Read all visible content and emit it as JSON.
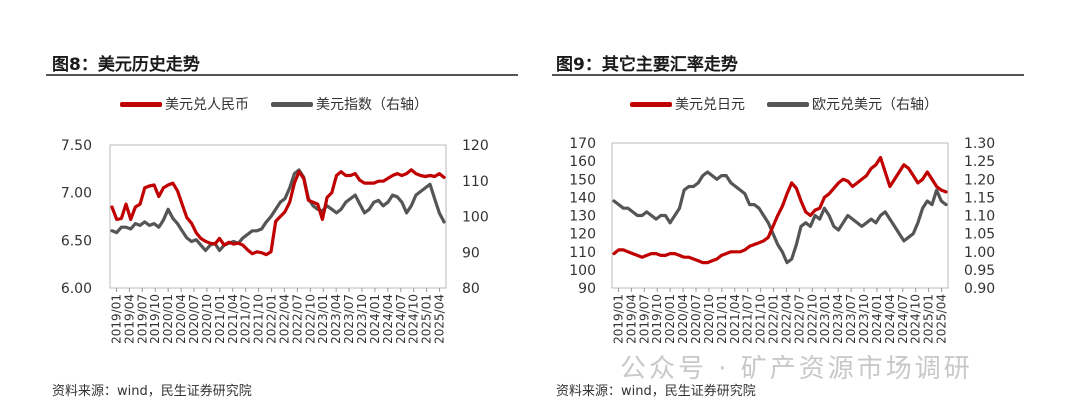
{
  "figures": [
    {
      "title": "图8：美元历史走势",
      "source": "资料来源：wind，民生证券研究院",
      "legend": [
        {
          "label": "美元兑人民币",
          "color": "#c00000"
        },
        {
          "label": "美元指数（右轴）",
          "color": "#555555"
        }
      ]
    },
    {
      "title": "图9：其它主要汇率走势",
      "source": "资料来源：wind，民生证券研究院",
      "legend": [
        {
          "label": "美元兑日元",
          "color": "#c00000"
        },
        {
          "label": "欧元兑美元（右轴）",
          "color": "#555555"
        }
      ]
    }
  ],
  "watermark": "公众号 · 矿产资源市场调研",
  "chart_data": [
    {
      "type": "line",
      "x_ticks": [
        "2019/01",
        "2019/04",
        "2019/07",
        "2019/10",
        "2020/01",
        "2020/04",
        "2020/07",
        "2020/10",
        "2021/01",
        "2021/04",
        "2021/07",
        "2021/10",
        "2022/01",
        "2022/04",
        "2022/07",
        "2022/10",
        "2023/01",
        "2023/04",
        "2023/07",
        "2023/10",
        "2024/01",
        "2024/04",
        "2024/07",
        "2024/10",
        "2025/01",
        "2025/04"
      ],
      "y_left": {
        "lim": [
          6.0,
          7.5
        ],
        "ticks": [
          "6.00",
          "6.50",
          "7.00",
          "7.50"
        ]
      },
      "y_right": {
        "lim": [
          80,
          120
        ],
        "ticks": [
          "80",
          "90",
          "100",
          "110",
          "120"
        ]
      },
      "series": [
        {
          "name": "美元兑人民币",
          "axis": "left",
          "color": "#c00000",
          "values": [
            6.85,
            6.72,
            6.73,
            6.88,
            6.72,
            6.85,
            6.88,
            7.05,
            7.07,
            7.08,
            6.96,
            7.05,
            7.08,
            7.1,
            7.02,
            6.88,
            6.74,
            6.68,
            6.58,
            6.52,
            6.49,
            6.47,
            6.46,
            6.52,
            6.45,
            6.48,
            6.46,
            6.47,
            6.45,
            6.4,
            6.36,
            6.38,
            6.37,
            6.35,
            6.38,
            6.7,
            6.75,
            6.8,
            6.9,
            7.1,
            7.22,
            7.15,
            6.92,
            6.9,
            6.88,
            6.72,
            6.95,
            7.0,
            7.18,
            7.22,
            7.18,
            7.18,
            7.2,
            7.13,
            7.1,
            7.1,
            7.1,
            7.12,
            7.12,
            7.15,
            7.18,
            7.2,
            7.18,
            7.2,
            7.24,
            7.2,
            7.18,
            7.17,
            7.18,
            7.17,
            7.2,
            7.16
          ]
        },
        {
          "name": "美元指数（右轴）",
          "axis": "right",
          "color": "#555555",
          "values": [
            96,
            95.5,
            97,
            97,
            96.5,
            98,
            97.5,
            98.5,
            97.5,
            98,
            97,
            99,
            102,
            99.5,
            98,
            96,
            94,
            93,
            93.5,
            92,
            90.5,
            92,
            92.5,
            90.5,
            92,
            92.5,
            93,
            92.5,
            94,
            95,
            96,
            96,
            96.5,
            98.5,
            100,
            102,
            104,
            105,
            108,
            112,
            113,
            111,
            105,
            103,
            102,
            101.5,
            103,
            102,
            101,
            102,
            104,
            105,
            106,
            103.5,
            101,
            102,
            104,
            104.5,
            103,
            104,
            106,
            105.5,
            104,
            101,
            103,
            106,
            107,
            108,
            109,
            105,
            101,
            98.5
          ]
        }
      ]
    },
    {
      "type": "line",
      "x_ticks": [
        "2019/01",
        "2019/04",
        "2019/07",
        "2019/10",
        "2020/01",
        "2020/04",
        "2020/07",
        "2020/10",
        "2021/01",
        "2021/04",
        "2021/07",
        "2021/10",
        "2022/01",
        "2022/04",
        "2022/07",
        "2022/10",
        "2023/01",
        "2023/04",
        "2023/07",
        "2023/10",
        "2024/01",
        "2024/04",
        "2024/07",
        "2024/10",
        "2025/01",
        "2025/04"
      ],
      "y_left": {
        "lim": [
          90,
          170
        ],
        "ticks": [
          "90",
          "100",
          "110",
          "120",
          "130",
          "140",
          "150",
          "160",
          "170"
        ]
      },
      "y_right": {
        "lim": [
          0.9,
          1.3
        ],
        "ticks": [
          "0.90",
          "0.95",
          "1.00",
          "1.05",
          "1.10",
          "1.15",
          "1.20",
          "1.25",
          "1.30"
        ]
      },
      "series": [
        {
          "name": "美元兑日元",
          "axis": "left",
          "color": "#c00000",
          "values": [
            109,
            111,
            111,
            110,
            109,
            108,
            107,
            108,
            109,
            109,
            108,
            108,
            109,
            109,
            108,
            107,
            107,
            106,
            105,
            104,
            104,
            105,
            106,
            108,
            109,
            110,
            110,
            110,
            111,
            113,
            114,
            115,
            116,
            118,
            124,
            130,
            135,
            142,
            148,
            145,
            138,
            132,
            130,
            133,
            134,
            140,
            142,
            145,
            148,
            150,
            149,
            146,
            148,
            150,
            152,
            156,
            158,
            162,
            154,
            146,
            150,
            154,
            158,
            156,
            152,
            148,
            150,
            154,
            150,
            146,
            144,
            143
          ]
        },
        {
          "name": "欧元兑美元（右轴）",
          "axis": "right",
          "color": "#555555",
          "values": [
            1.14,
            1.13,
            1.12,
            1.12,
            1.11,
            1.1,
            1.1,
            1.11,
            1.1,
            1.09,
            1.1,
            1.1,
            1.08,
            1.1,
            1.12,
            1.17,
            1.18,
            1.18,
            1.19,
            1.21,
            1.22,
            1.21,
            1.2,
            1.21,
            1.21,
            1.19,
            1.18,
            1.17,
            1.16,
            1.13,
            1.13,
            1.12,
            1.1,
            1.08,
            1.05,
            1.02,
            1.0,
            0.97,
            0.98,
            1.02,
            1.07,
            1.08,
            1.07,
            1.1,
            1.09,
            1.12,
            1.1,
            1.07,
            1.06,
            1.08,
            1.1,
            1.09,
            1.08,
            1.07,
            1.08,
            1.09,
            1.08,
            1.1,
            1.11,
            1.09,
            1.07,
            1.05,
            1.03,
            1.04,
            1.05,
            1.08,
            1.12,
            1.14,
            1.13,
            1.17,
            1.14,
            1.13
          ]
        }
      ]
    }
  ]
}
